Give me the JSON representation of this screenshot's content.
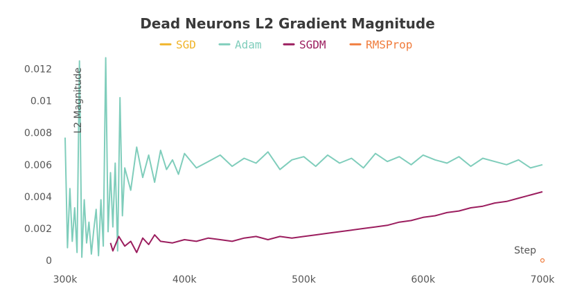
{
  "chart_data": {
    "type": "line",
    "title": "Dead Neurons L2 Gradient Magnitude",
    "xlabel": "Step",
    "ylabel": "L2 Magnitude",
    "xlim": [
      300000,
      700000
    ],
    "ylim": [
      0,
      0.0125
    ],
    "x_ticks": [
      {
        "value": 300000,
        "label": "300k"
      },
      {
        "value": 400000,
        "label": "400k"
      },
      {
        "value": 500000,
        "label": "500k"
      },
      {
        "value": 600000,
        "label": "600k"
      },
      {
        "value": 700000,
        "label": "700k"
      }
    ],
    "y_ticks": [
      {
        "value": 0,
        "label": "0"
      },
      {
        "value": 0.002,
        "label": "0.002"
      },
      {
        "value": 0.004,
        "label": "0.004"
      },
      {
        "value": 0.006,
        "label": "0.006"
      },
      {
        "value": 0.008,
        "label": "0.008"
      },
      {
        "value": 0.01,
        "label": "0.01"
      },
      {
        "value": 0.012,
        "label": "0.012"
      }
    ],
    "grid": false,
    "legend_position": "top-center",
    "series": [
      {
        "name": "SGD",
        "color": "#f0b429",
        "x": [],
        "values": []
      },
      {
        "name": "Adam",
        "color": "#7fcdbb",
        "x": [
          300000,
          302000,
          304000,
          306000,
          308000,
          310000,
          312000,
          314000,
          316000,
          318000,
          320000,
          322000,
          324000,
          326000,
          328000,
          330000,
          332000,
          334000,
          336000,
          338000,
          340000,
          342000,
          344000,
          346000,
          348000,
          350000,
          355000,
          360000,
          365000,
          370000,
          375000,
          380000,
          385000,
          390000,
          395000,
          400000,
          410000,
          420000,
          430000,
          440000,
          450000,
          460000,
          470000,
          480000,
          490000,
          500000,
          510000,
          520000,
          530000,
          540000,
          550000,
          560000,
          570000,
          580000,
          590000,
          600000,
          610000,
          620000,
          630000,
          640000,
          650000,
          660000,
          670000,
          680000,
          690000,
          700000
        ],
        "values": [
          0.0077,
          0.0008,
          0.0045,
          0.0012,
          0.0033,
          0.0005,
          0.0125,
          0.0002,
          0.0038,
          0.0011,
          0.0024,
          0.0004,
          0.0019,
          0.0032,
          0.0003,
          0.0038,
          0.0009,
          0.0127,
          0.0018,
          0.0055,
          0.0021,
          0.0061,
          0.0006,
          0.0102,
          0.0028,
          0.0058,
          0.0044,
          0.0071,
          0.0052,
          0.0066,
          0.0049,
          0.0069,
          0.0057,
          0.0063,
          0.0054,
          0.0067,
          0.0058,
          0.0062,
          0.0066,
          0.0059,
          0.0064,
          0.0061,
          0.0068,
          0.0057,
          0.0063,
          0.0065,
          0.0059,
          0.0066,
          0.0061,
          0.0064,
          0.0058,
          0.0067,
          0.0062,
          0.0065,
          0.006,
          0.0066,
          0.0063,
          0.0061,
          0.0065,
          0.0059,
          0.0064,
          0.0062,
          0.006,
          0.0063,
          0.0058,
          0.006
        ]
      },
      {
        "name": "SGDM",
        "color": "#9b1d5e",
        "x": [
          338000,
          340000,
          345000,
          350000,
          355000,
          360000,
          365000,
          370000,
          375000,
          380000,
          390000,
          400000,
          410000,
          420000,
          430000,
          440000,
          450000,
          460000,
          470000,
          480000,
          490000,
          500000,
          510000,
          520000,
          530000,
          540000,
          550000,
          560000,
          570000,
          580000,
          590000,
          600000,
          610000,
          620000,
          630000,
          640000,
          650000,
          660000,
          670000,
          680000,
          690000,
          700000
        ],
        "values": [
          0.0011,
          0.0006,
          0.0015,
          0.0009,
          0.0012,
          0.0005,
          0.0014,
          0.001,
          0.0016,
          0.0012,
          0.0011,
          0.0013,
          0.0012,
          0.0014,
          0.0013,
          0.0012,
          0.0014,
          0.0015,
          0.0013,
          0.0015,
          0.0014,
          0.0015,
          0.0016,
          0.0017,
          0.0018,
          0.0019,
          0.002,
          0.0021,
          0.0022,
          0.0024,
          0.0025,
          0.0027,
          0.0028,
          0.003,
          0.0031,
          0.0033,
          0.0034,
          0.0036,
          0.0037,
          0.0039,
          0.0041,
          0.0043
        ]
      },
      {
        "name": "RMSProp",
        "color": "#f07c3c",
        "x": [
          700000
        ],
        "values": [
          0
        ]
      }
    ]
  }
}
